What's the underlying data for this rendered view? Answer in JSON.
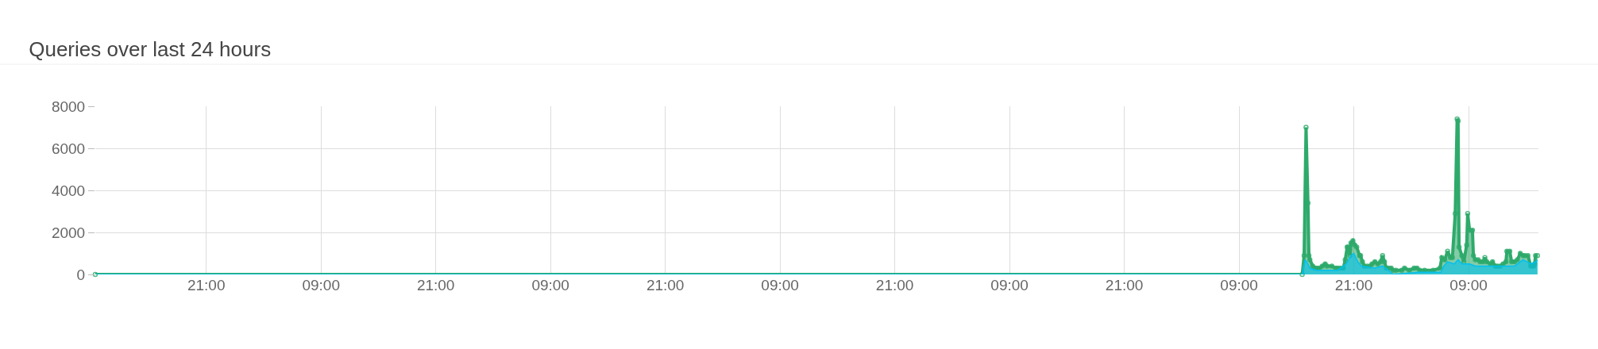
{
  "chart_data": {
    "type": "area",
    "title": "Queries over last 24 hours",
    "xlim": [
      "--01-01T09:24",
      "--01-07T16:18"
    ],
    "ylim": [
      0,
      8000
    ],
    "yticks": [
      0,
      2000,
      4000,
      6000,
      8000
    ],
    "xticks": [
      {
        "value": "--01-01T21:00",
        "label": "21:00"
      },
      {
        "value": "--01-02T09:00",
        "label": "09:00"
      },
      {
        "value": "--01-02T21:00",
        "label": "21:00"
      },
      {
        "value": "--01-03T09:00",
        "label": "09:00"
      },
      {
        "value": "--01-03T21:00",
        "label": "21:00"
      },
      {
        "value": "--01-04T09:00",
        "label": "09:00"
      },
      {
        "value": "--01-04T21:00",
        "label": "21:00"
      },
      {
        "value": "--01-05T09:00",
        "label": "09:00"
      },
      {
        "value": "--01-05T21:00",
        "label": "21:00"
      },
      {
        "value": "--01-06T09:00",
        "label": "09:00"
      },
      {
        "value": "--01-06T21:00",
        "label": "21:00"
      },
      {
        "value": "--01-07T09:00",
        "label": "09:00"
      }
    ],
    "grid": true,
    "legend": false,
    "line_style": "solid",
    "series": [
      {
        "color": "#2eaa6b",
        "marker": "circle",
        "x": [
          "--01-01T09:24",
          "--01-06T15:36",
          "--01-06T15:48",
          "--01-06T16:00",
          "--01-06T16:12",
          "--01-06T16:18",
          "--01-06T16:24",
          "--01-06T16:42",
          "--01-06T16:54",
          "--01-06T17:06",
          "--01-06T17:24",
          "--01-06T17:42",
          "--01-06T18:00",
          "--01-06T18:12",
          "--01-06T18:42",
          "--01-06T19:06",
          "--01-06T19:18",
          "--01-06T19:36",
          "--01-06T19:54",
          "--01-06T20:06",
          "--01-06T20:18",
          "--01-06T20:24",
          "--01-06T20:36",
          "--01-06T20:42",
          "--01-06T20:54",
          "--01-06T21:06",
          "--01-06T21:18",
          "--01-06T21:36",
          "--01-06T21:42",
          "--01-06T21:54",
          "--01-06T22:06",
          "--01-06T22:24",
          "--01-06T22:42",
          "--01-06T22:54",
          "--01-06T23:12",
          "--01-06T23:30",
          "--01-06T23:48",
          "--01-07T00:00",
          "--01-07T00:12",
          "--01-07T00:24",
          "--01-07T00:36",
          "--01-07T00:54",
          "--01-07T01:06",
          "--01-07T01:24",
          "--01-07T02:00",
          "--01-07T02:18",
          "--01-07T02:48",
          "--01-07T03:18",
          "--01-07T03:36",
          "--01-07T03:54",
          "--01-07T04:24",
          "--01-07T05:18",
          "--01-07T06:00",
          "--01-07T06:12",
          "--01-07T06:30",
          "--01-07T06:48",
          "--01-07T07:06",
          "--01-07T07:18",
          "--01-07T07:36",
          "--01-07T07:48",
          "--01-07T07:54",
          "--01-07T08:00",
          "--01-07T08:18",
          "--01-07T08:30",
          "--01-07T08:48",
          "--01-07T08:54",
          "--01-07T09:06",
          "--01-07T09:24",
          "--01-07T09:30",
          "--01-07T09:42",
          "--01-07T10:00",
          "--01-07T10:12",
          "--01-07T10:30",
          "--01-07T10:42",
          "--01-07T10:54",
          "--01-07T11:18",
          "--01-07T11:30",
          "--01-07T11:48",
          "--01-07T12:00",
          "--01-07T12:18",
          "--01-07T12:36",
          "--01-07T12:54",
          "--01-07T13:00",
          "--01-07T13:18",
          "--01-07T13:30",
          "--01-07T13:48",
          "--01-07T14:06",
          "--01-07T14:24",
          "--01-07T14:42",
          "--01-07T14:54",
          "--01-07T15:12",
          "--01-07T15:30",
          "--01-07T15:48",
          "--01-07T15:54",
          "--01-07T16:00",
          "--01-07T16:12"
        ],
        "values": [
          0,
          0,
          900,
          7000,
          3400,
          900,
          700,
          400,
          300,
          300,
          300,
          400,
          500,
          400,
          400,
          300,
          300,
          300,
          300,
          700,
          1300,
          1300,
          900,
          1500,
          1600,
          1400,
          1300,
          900,
          900,
          600,
          400,
          400,
          400,
          500,
          600,
          500,
          600,
          900,
          600,
          300,
          300,
          300,
          200,
          200,
          200,
          300,
          200,
          300,
          300,
          200,
          200,
          200,
          300,
          800,
          700,
          1100,
          800,
          800,
          2900,
          7400,
          7300,
          1300,
          900,
          600,
          1400,
          2900,
          2100,
          2100,
          900,
          700,
          700,
          600,
          600,
          800,
          600,
          500,
          600,
          400,
          400,
          400,
          500,
          600,
          1100,
          1100,
          600,
          600,
          700,
          1000,
          900,
          900,
          900,
          400,
          400,
          500,
          900,
          900
        ]
      },
      {
        "color": "#00c0ef",
        "marker": "none",
        "x": [
          "--01-01T09:24",
          "--01-06T15:36",
          "--01-06T15:54",
          "--01-06T16:12",
          "--01-06T16:24",
          "--01-06T17:06",
          "--01-06T19:18",
          "--01-06T20:12",
          "--01-06T20:42",
          "--01-06T21:00",
          "--01-06T21:24",
          "--01-06T21:48",
          "--01-06T23:12",
          "--01-07T00:00",
          "--01-07T00:36",
          "--01-07T01:06",
          "--01-07T03:36",
          "--01-07T06:06",
          "--01-07T06:24",
          "--01-07T06:48",
          "--01-07T07:30",
          "--01-07T07:54",
          "--01-07T08:18",
          "--01-07T09:06",
          "--01-07T09:42",
          "--01-07T11:54",
          "--01-07T13:00",
          "--01-07T13:48",
          "--01-07T14:42",
          "--01-07T15:30",
          "--01-07T16:00",
          "--01-07T16:12"
        ],
        "values": [
          0,
          0,
          700,
          500,
          300,
          200,
          200,
          500,
          900,
          1000,
          600,
          400,
          300,
          400,
          200,
          0,
          100,
          100,
          400,
          600,
          500,
          700,
          500,
          500,
          400,
          400,
          400,
          400,
          700,
          500,
          600,
          700
        ]
      }
    ]
  }
}
